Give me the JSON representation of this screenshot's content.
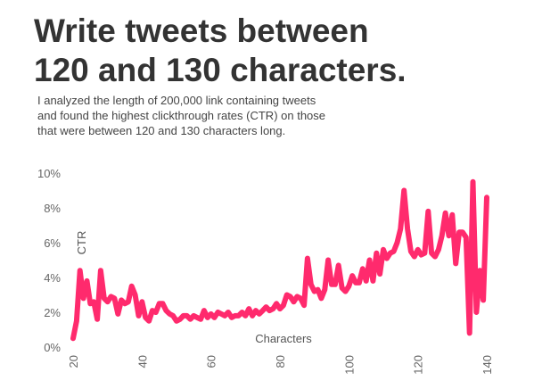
{
  "chart_data": {
    "type": "line",
    "title": [
      "Write tweets between",
      "120 and 130 characters."
    ],
    "subtitle": [
      "I analyzed the length of 200,000 link containing tweets",
      "and found the highest clickthrough rates (CTR) on those",
      "that were between 120 and 130 characters long."
    ],
    "y_label": "CTR",
    "x_label": "Characters",
    "xlim": [
      20,
      140
    ],
    "xticks": [
      20,
      40,
      60,
      80,
      100,
      120,
      140
    ],
    "ylim": [
      0,
      10
    ],
    "yticks": [
      {
        "value": 0,
        "label": "0%"
      },
      {
        "value": 2,
        "label": "2%"
      },
      {
        "value": 4,
        "label": "4%"
      },
      {
        "value": 6,
        "label": "6%"
      },
      {
        "value": 8,
        "label": "8%"
      },
      {
        "value": 10,
        "label": "10%"
      }
    ],
    "series": [
      {
        "color": "#ff2a6d",
        "x": [
          20,
          21,
          22,
          23,
          24,
          25,
          26,
          27,
          28,
          29,
          30,
          31,
          32,
          33,
          34,
          35,
          36,
          37,
          38,
          39,
          40,
          41,
          42,
          43,
          44,
          45,
          46,
          47,
          48,
          49,
          50,
          51,
          52,
          53,
          54,
          55,
          56,
          57,
          58,
          59,
          60,
          61,
          62,
          63,
          64,
          65,
          66,
          67,
          68,
          69,
          70,
          71,
          72,
          73,
          74,
          75,
          76,
          77,
          78,
          79,
          80,
          81,
          82,
          83,
          84,
          85,
          86,
          87,
          88,
          89,
          90,
          91,
          92,
          93,
          94,
          95,
          96,
          97,
          98,
          99,
          100,
          101,
          102,
          103,
          104,
          105,
          106,
          107,
          108,
          109,
          110,
          111,
          112,
          113,
          114,
          115,
          116,
          117,
          118,
          119,
          120,
          121,
          122,
          123,
          124,
          125,
          126,
          127,
          128,
          129,
          130,
          131,
          132,
          133,
          134,
          135,
          136,
          137,
          138,
          139,
          140
        ],
        "values": [
          0.5,
          1.5,
          4.4,
          2.8,
          3.8,
          2.5,
          2.6,
          1.6,
          4.4,
          2.8,
          2.6,
          2.9,
          2.8,
          1.9,
          2.7,
          2.5,
          2.6,
          3.5,
          3.0,
          1.8,
          2.6,
          1.7,
          1.5,
          2.1,
          2.0,
          2.5,
          2.5,
          2.1,
          1.9,
          1.8,
          1.5,
          1.6,
          1.8,
          1.8,
          1.6,
          1.8,
          1.7,
          1.6,
          2.1,
          1.7,
          1.9,
          1.7,
          2.0,
          1.9,
          1.8,
          2.0,
          1.7,
          1.8,
          1.8,
          2.0,
          1.8,
          2.2,
          1.8,
          2.1,
          1.9,
          2.1,
          2.3,
          2.1,
          2.2,
          2.5,
          2.2,
          2.4,
          3.0,
          2.9,
          2.6,
          2.9,
          2.8,
          2.4,
          5.1,
          3.6,
          3.2,
          3.3,
          2.8,
          3.3,
          5.0,
          3.6,
          3.6,
          4.7,
          3.4,
          3.2,
          3.5,
          4.1,
          3.7,
          3.7,
          4.5,
          3.8,
          5.0,
          3.8,
          5.4,
          4.2,
          5.6,
          5.1,
          5.4,
          5.5,
          6.0,
          6.8,
          9.0,
          6.8,
          5.5,
          5.2,
          5.6,
          5.3,
          5.4,
          7.8,
          5.4,
          5.2,
          5.6,
          6.4,
          7.7,
          6.4,
          7.6,
          4.8,
          6.6,
          6.6,
          6.3,
          0.8,
          9.5,
          2.0,
          4.4,
          2.7,
          8.6
        ]
      }
    ]
  }
}
